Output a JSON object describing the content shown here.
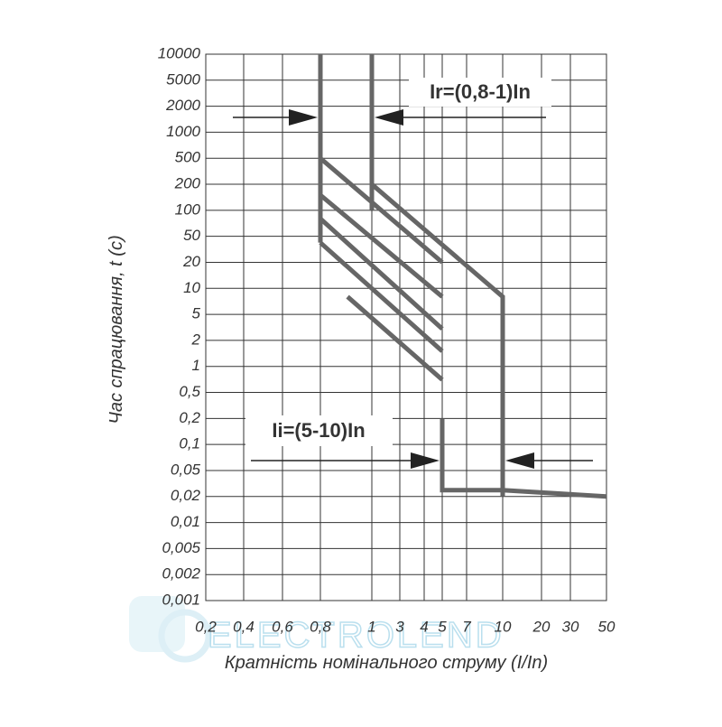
{
  "chart_data": {
    "type": "line",
    "y_label": "Час спрацювання, t (c)",
    "x_label": "Кратність номінального струму (I/In)",
    "annotations": [
      "Ir=(0,8-1)In",
      "Ii=(5-10)In"
    ],
    "watermark": "ELECTROLEND",
    "log_y": true,
    "grid": true,
    "xlim": [
      0.2,
      50
    ],
    "ylim": [
      0.001,
      10000
    ],
    "xticks": [
      {
        "value": 0.2,
        "label": "0,2"
      },
      {
        "value": 0.4,
        "label": "0,4"
      },
      {
        "value": 0.6,
        "label": "0,6"
      },
      {
        "value": 0.8,
        "label": "0,8"
      },
      1,
      3,
      4,
      5,
      7,
      10,
      20,
      30,
      50
    ],
    "yticks": [
      10000,
      5000,
      2000,
      1000,
      500,
      200,
      100,
      50,
      20,
      10,
      5,
      2,
      1,
      {
        "value": 0.5,
        "label": "0,5"
      },
      {
        "value": 0.2,
        "label": "0,2"
      },
      {
        "value": 0.1,
        "label": "0,1"
      },
      {
        "value": 0.05,
        "label": "0,05"
      },
      {
        "value": 0.02,
        "label": "0,02"
      },
      {
        "value": 0.01,
        "label": "0,01"
      },
      {
        "value": 0.005,
        "label": "0,005"
      },
      {
        "value": 0.002,
        "label": "0,002"
      },
      {
        "value": 0.001,
        "label": "0,001"
      }
    ],
    "series": [
      {
        "color": "#666666",
        "x": [
          0.8,
          0.8
        ],
        "values": [
          10000,
          40
        ]
      },
      {
        "color": "#666666",
        "x": [
          1,
          1
        ],
        "values": [
          10000,
          100
        ]
      },
      {
        "color": "#666666",
        "x": [
          1,
          10,
          10
        ],
        "values": [
          200,
          8,
          0.02
        ]
      },
      {
        "color": "#666666",
        "x": [
          5,
          5,
          10,
          50
        ],
        "values": [
          0.2,
          0.025,
          0.025,
          0.02
        ]
      },
      {
        "color": "#666666",
        "x": [
          0.8,
          5
        ],
        "values": [
          500,
          20
        ]
      },
      {
        "color": "#666666",
        "x": [
          0.8,
          5
        ],
        "values": [
          150,
          8
        ]
      },
      {
        "color": "#666666",
        "x": [
          0.8,
          5
        ],
        "values": [
          80,
          3
        ]
      },
      {
        "color": "#666666",
        "x": [
          0.8,
          5
        ],
        "values": [
          40,
          1.5
        ]
      },
      {
        "color": "#666666",
        "x": [
          0.9,
          5
        ],
        "values": [
          8,
          0.7
        ]
      }
    ]
  }
}
